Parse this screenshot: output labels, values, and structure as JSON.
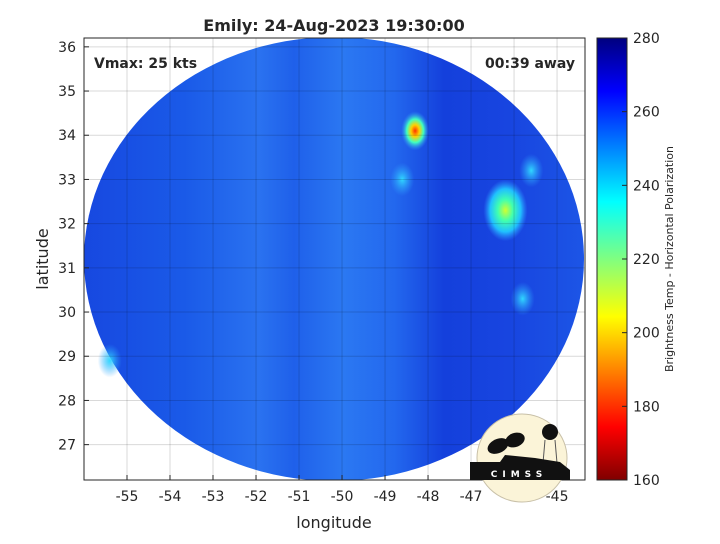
{
  "chart_data": {
    "type": "heatmap",
    "title": "Emily: 24-Aug-2023 19:30:00",
    "xlabel": "longitude",
    "ylabel": "latitude",
    "xlim": [
      -56.0,
      -44.35
    ],
    "ylim": [
      26.2,
      36.2
    ],
    "xticks": [
      -55,
      -54,
      -53,
      -52,
      -51,
      -50,
      -49,
      -48,
      -47,
      -46,
      -45
    ],
    "yticks": [
      27,
      28,
      29,
      30,
      31,
      32,
      33,
      34,
      35,
      36
    ],
    "grid": true,
    "annotations": {
      "left": "Vmax: 25 kts",
      "right": "00:39 away"
    },
    "colorbar": {
      "label": "Brightness Temp - Horizontal Polarization",
      "range": [
        160,
        280
      ],
      "ticks": [
        160,
        180,
        200,
        220,
        240,
        260,
        280
      ],
      "colormap": "jet"
    },
    "swath": {
      "center_lon": -50.2,
      "center_lat": 31.2,
      "background_value": 262
    },
    "features": [
      {
        "name": "cold spot",
        "lon": -48.3,
        "lat": 34.1,
        "value": 185
      },
      {
        "name": "cold cluster",
        "lon": -46.2,
        "lat": 32.3,
        "value": 215
      },
      {
        "name": "band",
        "lon": -45.6,
        "lat": 33.2,
        "value": 240
      },
      {
        "name": "band",
        "lon": -48.6,
        "lat": 33.0,
        "value": 248
      },
      {
        "name": "band",
        "lon": -45.8,
        "lat": 30.3,
        "value": 245
      },
      {
        "name": "band",
        "lon": -55.4,
        "lat": 28.9,
        "value": 245
      }
    ]
  },
  "logo": {
    "text": "CIMSS"
  }
}
